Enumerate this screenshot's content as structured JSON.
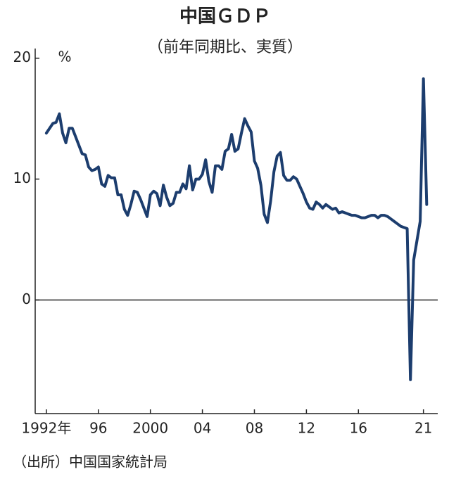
{
  "chart_data": {
    "type": "line",
    "title": "中国ＧＤＰ",
    "subtitle": "（前年同期比、実質）",
    "y_label": "%",
    "source": "（出所）中国国家統計局",
    "color": "#1c3d6e",
    "xlim": [
      1991.14,
      2022.1
    ],
    "xticks": [
      {
        "value": 1992,
        "label": "1992年"
      },
      {
        "value": 1996,
        "label": "96"
      },
      2000,
      {
        "value": 2004,
        "label": "04"
      },
      {
        "value": 2008,
        "label": "08"
      },
      {
        "value": 2012,
        "label": "12"
      },
      {
        "value": 2016,
        "label": "16"
      },
      {
        "value": 2021,
        "label": "21"
      }
    ],
    "ylim": [
      -9.4,
      20.8
    ],
    "yticks": [
      0,
      10,
      20
    ],
    "x": [
      1992,
      1992.25,
      1992.5,
      1992.75,
      1993,
      1993.25,
      1993.5,
      1993.75,
      1994,
      1994.25,
      1994.5,
      1994.75,
      1995,
      1995.25,
      1995.5,
      1995.75,
      1996,
      1996.25,
      1996.5,
      1996.75,
      1997,
      1997.25,
      1997.5,
      1997.75,
      1998,
      1998.25,
      1998.5,
      1998.75,
      1999,
      1999.25,
      1999.5,
      1999.75,
      2000,
      2000.25,
      2000.5,
      2000.75,
      2001,
      2001.25,
      2001.5,
      2001.75,
      2002,
      2002.25,
      2002.5,
      2002.75,
      2003,
      2003.25,
      2003.5,
      2003.75,
      2004,
      2004.25,
      2004.5,
      2004.75,
      2005,
      2005.25,
      2005.5,
      2005.75,
      2006,
      2006.25,
      2006.5,
      2006.75,
      2007,
      2007.25,
      2007.5,
      2007.75,
      2008,
      2008.25,
      2008.5,
      2008.75,
      2009,
      2009.25,
      2009.5,
      2009.75,
      2010,
      2010.25,
      2010.5,
      2010.75,
      2011,
      2011.25,
      2011.5,
      2011.75,
      2012,
      2012.25,
      2012.5,
      2012.75,
      2013,
      2013.25,
      2013.5,
      2013.75,
      2014,
      2014.25,
      2014.5,
      2014.75,
      2015,
      2015.25,
      2015.5,
      2015.75,
      2016,
      2016.25,
      2016.5,
      2016.75,
      2017,
      2017.25,
      2017.5,
      2017.75,
      2018,
      2018.25,
      2018.5,
      2018.75,
      2019,
      2019.25,
      2019.5,
      2019.75,
      2020,
      2020.25,
      2020.5,
      2020.75,
      2021,
      2021.25
    ],
    "values": [
      13.8,
      14.2,
      14.6,
      14.7,
      15.4,
      13.8,
      13.0,
      14.2,
      14.2,
      13.5,
      12.8,
      12.1,
      12.0,
      11.0,
      10.7,
      10.8,
      11.0,
      9.6,
      9.4,
      10.3,
      10.1,
      10.1,
      8.7,
      8.7,
      7.5,
      7.0,
      7.9,
      9.0,
      8.9,
      8.3,
      7.6,
      6.9,
      8.7,
      9.0,
      8.8,
      7.8,
      9.5,
      8.5,
      7.8,
      8.0,
      8.9,
      8.9,
      9.6,
      9.2,
      11.1,
      9.1,
      10.0,
      10.0,
      10.4,
      11.6,
      9.8,
      8.9,
      11.1,
      11.1,
      10.8,
      12.3,
      12.5,
      13.7,
      12.3,
      12.5,
      13.8,
      15.0,
      14.4,
      13.9,
      11.5,
      10.9,
      9.5,
      7.1,
      6.4,
      8.2,
      10.6,
      11.9,
      12.2,
      10.3,
      9.9,
      9.9,
      10.2,
      10.0,
      9.4,
      8.8,
      8.1,
      7.6,
      7.5,
      8.1,
      7.9,
      7.6,
      7.9,
      7.7,
      7.5,
      7.6,
      7.2,
      7.3,
      7.2,
      7.1,
      7.0,
      7.0,
      6.9,
      6.8,
      6.8,
      6.9,
      7.0,
      7.0,
      6.8,
      7.0,
      7.0,
      6.9,
      6.7,
      6.5,
      6.3,
      6.1,
      6.0,
      5.9,
      -6.6,
      3.3,
      4.9,
      6.5,
      18.3,
      7.9
    ]
  }
}
